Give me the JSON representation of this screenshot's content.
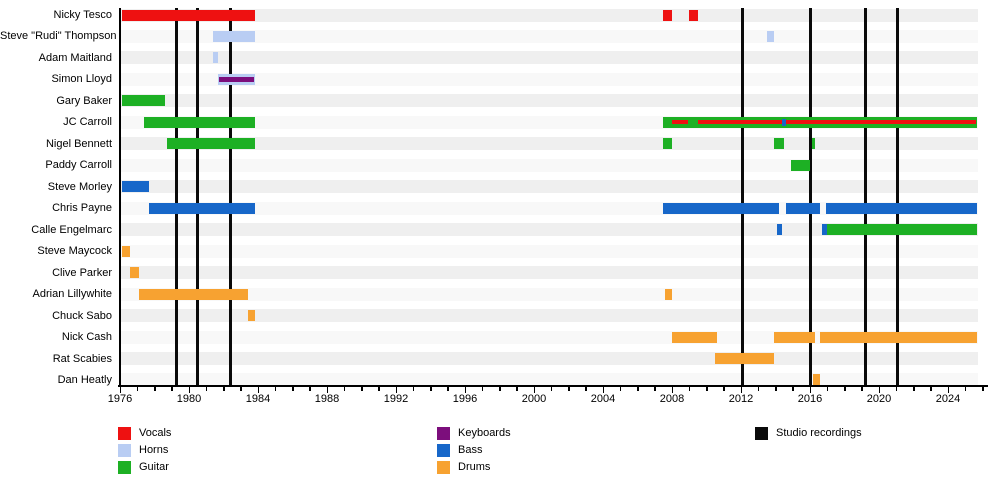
{
  "chart_data": {
    "type": "gantt",
    "title": "",
    "x_axis": {
      "min": 1976,
      "max": 2026,
      "minor_tick_every_years": 1,
      "label_every_years": 4,
      "tick_labels": [
        "1976",
        "1980",
        "1984",
        "1988",
        "1992",
        "1996",
        "2000",
        "2004",
        "2008",
        "2012",
        "2016",
        "2020",
        "2024"
      ]
    },
    "colors": {
      "vocals": "#ee1111",
      "horns": "#b9cdf3",
      "guitar": "#1db024",
      "keyboards": "#7c0e7c",
      "bass": "#1767c9",
      "drums": "#f7a231",
      "studio": "#0a0a0a",
      "stripe": "#efefef",
      "stripe_alt": "#f8f8f8"
    },
    "studio_recording_years": [
      1979.3,
      1980.5,
      1982.4,
      2012.1,
      2016.0,
      2019.2,
      2021.1
    ],
    "members": [
      {
        "name": "Nicky Tesco",
        "bars": [
          {
            "role": "vocals",
            "start": 1976.1,
            "end": 1983.8
          },
          {
            "role": "vocals",
            "start": 2007.5,
            "end": 2008.0
          },
          {
            "role": "vocals",
            "start": 2009.0,
            "end": 2009.5
          }
        ]
      },
      {
        "name": "Steve \"Rudi\" Thompson",
        "bars": [
          {
            "role": "horns",
            "start": 1981.4,
            "end": 1983.8
          },
          {
            "role": "horns",
            "start": 2013.5,
            "end": 2013.9
          }
        ]
      },
      {
        "name": "Adam Maitland",
        "bars": [
          {
            "role": "horns",
            "start": 1981.4,
            "end": 1981.7
          }
        ]
      },
      {
        "name": "Simon Lloyd",
        "bars": [
          {
            "role": "horns",
            "start": 1981.7,
            "end": 1983.8
          },
          {
            "role": "keyboards",
            "start": 1981.75,
            "end": 1983.75,
            "overlay": true
          }
        ]
      },
      {
        "name": "Gary Baker",
        "bars": [
          {
            "role": "guitar",
            "start": 1976.1,
            "end": 1978.6
          }
        ]
      },
      {
        "name": "JC Carroll",
        "bars": [
          {
            "role": "guitar",
            "start": 1977.4,
            "end": 1983.8
          },
          {
            "role": "guitar",
            "start": 2007.5,
            "end": 2025.7
          },
          {
            "role": "vocals",
            "start": 2008.0,
            "end": 2008.9,
            "overlay": true
          },
          {
            "role": "vocals",
            "start": 2009.5,
            "end": 2025.6,
            "overlay": true
          },
          {
            "role": "bass",
            "start": 2014.4,
            "end": 2014.6,
            "overlay": true
          }
        ]
      },
      {
        "name": "Nigel Bennett",
        "bars": [
          {
            "role": "guitar",
            "start": 1978.7,
            "end": 1983.8
          },
          {
            "role": "guitar",
            "start": 2007.5,
            "end": 2008.0
          },
          {
            "role": "guitar",
            "start": 2013.9,
            "end": 2014.5
          },
          {
            "role": "guitar",
            "start": 2016.1,
            "end": 2016.3
          }
        ]
      },
      {
        "name": "Paddy Carroll",
        "bars": [
          {
            "role": "guitar",
            "start": 2014.9,
            "end": 2016.0
          }
        ]
      },
      {
        "name": "Steve Morley",
        "bars": [
          {
            "role": "bass",
            "start": 1976.1,
            "end": 1977.7
          }
        ]
      },
      {
        "name": "Chris Payne",
        "bars": [
          {
            "role": "bass",
            "start": 1977.7,
            "end": 1983.8
          },
          {
            "role": "bass",
            "start": 2007.5,
            "end": 2014.2
          },
          {
            "role": "bass",
            "start": 2014.6,
            "end": 2016.6
          },
          {
            "role": "bass",
            "start": 2016.9,
            "end": 2025.7
          }
        ]
      },
      {
        "name": "Calle Engelmarc",
        "bars": [
          {
            "role": "bass",
            "start": 2014.1,
            "end": 2014.4
          },
          {
            "role": "bass",
            "start": 2016.7,
            "end": 2017.0
          },
          {
            "role": "guitar",
            "start": 2017.0,
            "end": 2025.7
          }
        ]
      },
      {
        "name": "Steve Maycock",
        "bars": [
          {
            "role": "drums",
            "start": 1976.1,
            "end": 1976.6
          }
        ]
      },
      {
        "name": "Clive Parker",
        "bars": [
          {
            "role": "drums",
            "start": 1976.6,
            "end": 1977.1
          }
        ]
      },
      {
        "name": "Adrian Lillywhite",
        "bars": [
          {
            "role": "drums",
            "start": 1977.1,
            "end": 1983.4
          },
          {
            "role": "drums",
            "start": 2007.6,
            "end": 2008.0
          }
        ]
      },
      {
        "name": "Chuck Sabo",
        "bars": [
          {
            "role": "drums",
            "start": 1983.4,
            "end": 1983.8
          }
        ]
      },
      {
        "name": "Nick Cash",
        "bars": [
          {
            "role": "drums",
            "start": 2008.0,
            "end": 2010.6
          },
          {
            "role": "drums",
            "start": 2013.9,
            "end": 2016.3
          },
          {
            "role": "drums",
            "start": 2016.6,
            "end": 2025.7
          }
        ]
      },
      {
        "name": "Rat Scabies",
        "bars": [
          {
            "role": "drums",
            "start": 2010.5,
            "end": 2013.9
          }
        ]
      },
      {
        "name": "Dan Heatly",
        "bars": [
          {
            "role": "drums",
            "start": 2016.2,
            "end": 2016.6
          }
        ]
      }
    ]
  },
  "legend": {
    "columns": [
      {
        "items": [
          {
            "role": "vocals",
            "label": "Vocals"
          },
          {
            "role": "horns",
            "label": "Horns"
          },
          {
            "role": "guitar",
            "label": "Guitar"
          }
        ]
      },
      {
        "items": [
          {
            "role": "keyboards",
            "label": "Keyboards"
          },
          {
            "role": "bass",
            "label": "Bass"
          },
          {
            "role": "drums",
            "label": "Drums"
          }
        ]
      },
      {
        "items": [
          {
            "role": "studio",
            "label": "Studio recordings"
          }
        ]
      }
    ]
  }
}
